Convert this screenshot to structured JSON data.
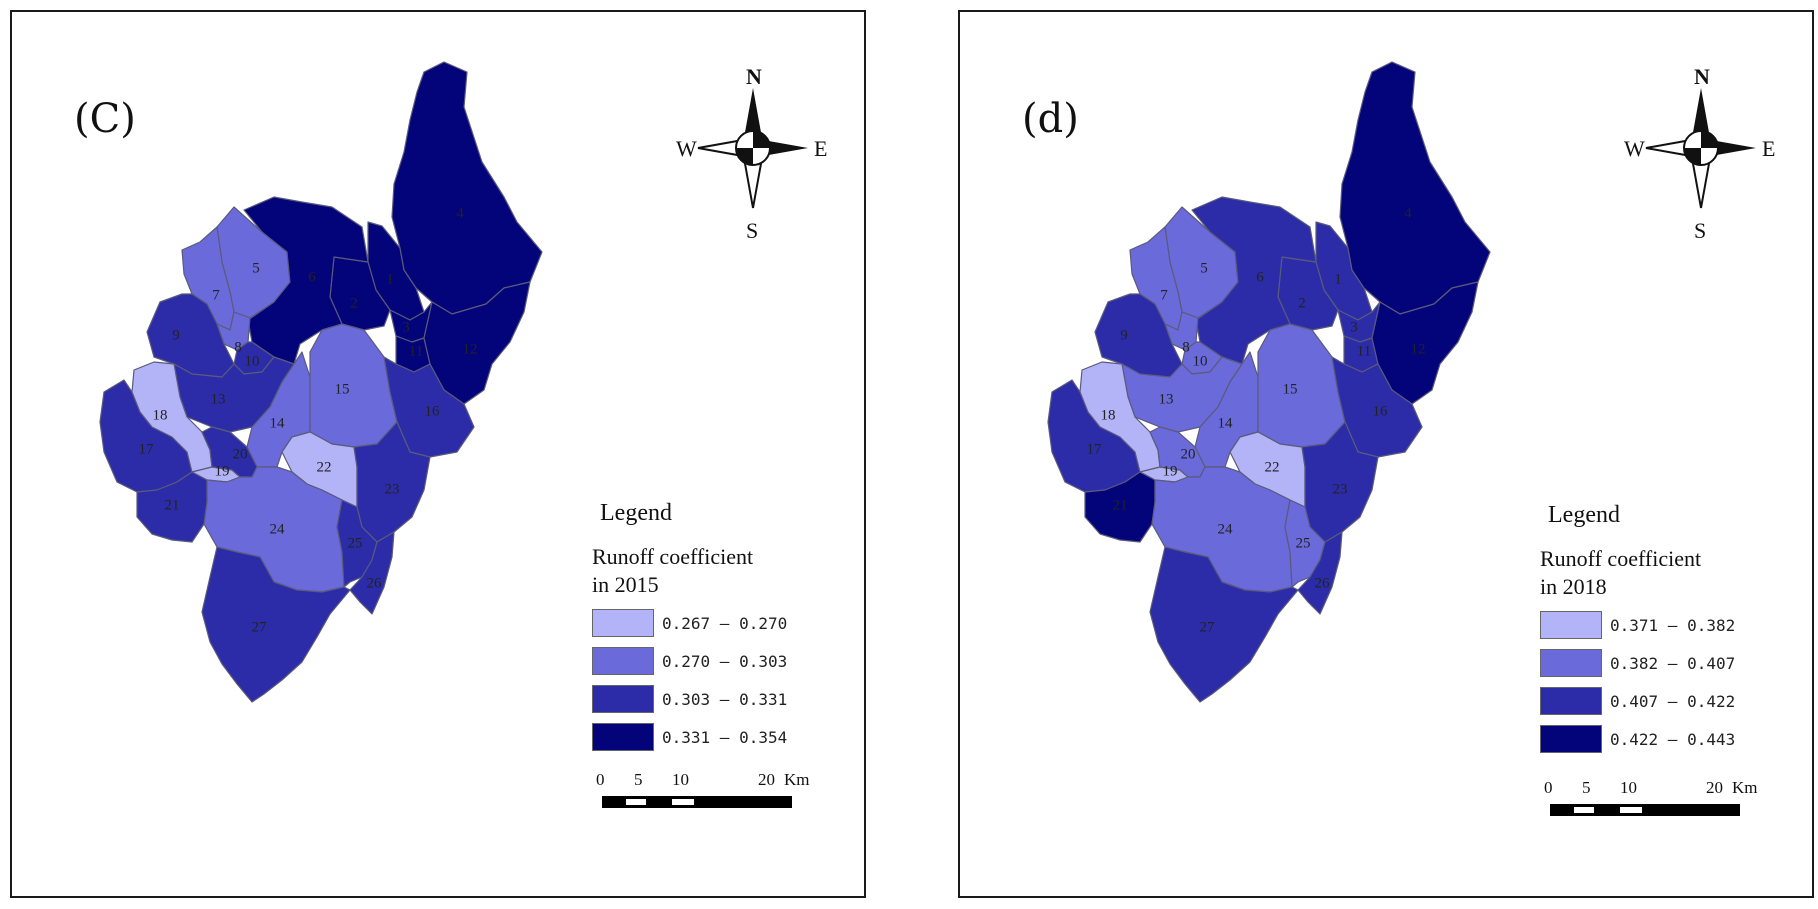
{
  "colors": {
    "class1": "#b3b3f7",
    "class2": "#6a6adb",
    "class3": "#2c2ca8",
    "class4": "#03037a"
  },
  "compass": {
    "n": "N",
    "s": "S",
    "e": "E",
    "w": "W"
  },
  "panels": [
    {
      "label": "(C)",
      "legend_title": "Legend",
      "subtitle_line1": "Runoff coefficient",
      "subtitle_line2": "in 2015",
      "classes": [
        "0.267 – 0.270",
        "0.270 – 0.303",
        "0.303 – 0.331",
        "0.331 – 0.354"
      ],
      "scale": {
        "t0": "0",
        "t5": "5",
        "t10": "10",
        "t20": "20",
        "unit": "Km"
      },
      "zones": {
        "1": 4,
        "2": 4,
        "3": 4,
        "4": 4,
        "5": 2,
        "6": 4,
        "7": 2,
        "8": 2,
        "9": 3,
        "10": 3,
        "11": 4,
        "12": 4,
        "13": 3,
        "14": 2,
        "15": 2,
        "16": 3,
        "17": 3,
        "18": 1,
        "19": 1,
        "20": 3,
        "21": 3,
        "22": 1,
        "23": 3,
        "24": 2,
        "25": 3,
        "26": 3,
        "27": 3
      }
    },
    {
      "label": "(d)",
      "legend_title": "Legend",
      "subtitle_line1": "Runoff coefficient",
      "subtitle_line2": "in 2018",
      "classes": [
        "0.371 – 0.382",
        "0.382 – 0.407",
        "0.407 – 0.422",
        "0.422 – 0.443"
      ],
      "scale": {
        "t0": "0",
        "t5": "5",
        "t10": "10",
        "t20": "20",
        "unit": "Km"
      },
      "zones": {
        "1": 3,
        "2": 3,
        "3": 3,
        "4": 4,
        "5": 2,
        "6": 3,
        "7": 2,
        "8": 2,
        "9": 3,
        "10": 2,
        "11": 3,
        "12": 4,
        "13": 2,
        "14": 2,
        "15": 2,
        "16": 3,
        "17": 3,
        "18": 1,
        "19": 1,
        "20": 2,
        "21": 4,
        "22": 1,
        "23": 3,
        "24": 2,
        "25": 2,
        "26": 3,
        "27": 3
      }
    }
  ]
}
